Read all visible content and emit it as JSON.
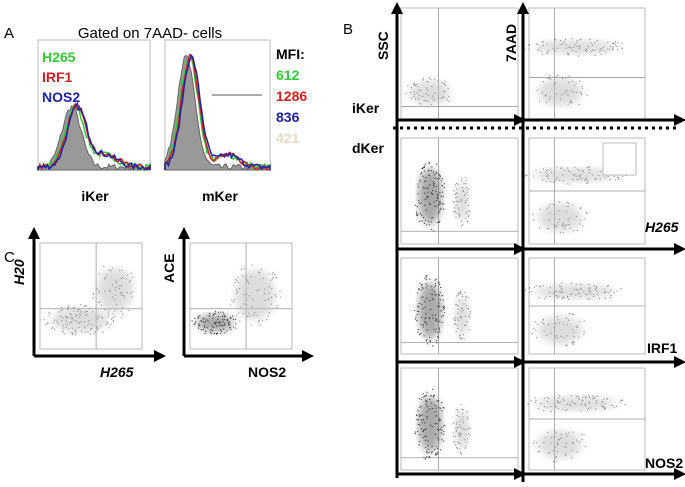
{
  "panel_a": {
    "label": "A",
    "title": "Gated on 7AAD- cells",
    "legend": [
      "H265",
      "IRF1",
      "NOS2"
    ],
    "mfi_title": "MFI:",
    "mfi_values": [
      "612",
      "1286",
      "836",
      "421"
    ],
    "x_labels": [
      "iKer",
      "mKer"
    ]
  },
  "panel_b": {
    "label": "B",
    "y_axes": [
      "SSC",
      "7AAD"
    ],
    "groups": [
      "iKer",
      "dKer"
    ],
    "markers": [
      "H265",
      "IRF1",
      "NOS2"
    ]
  },
  "panel_c": {
    "label": "C",
    "y_axes": [
      "H20",
      "ACE"
    ],
    "x_axes": [
      "H265",
      "NOS2"
    ]
  }
}
